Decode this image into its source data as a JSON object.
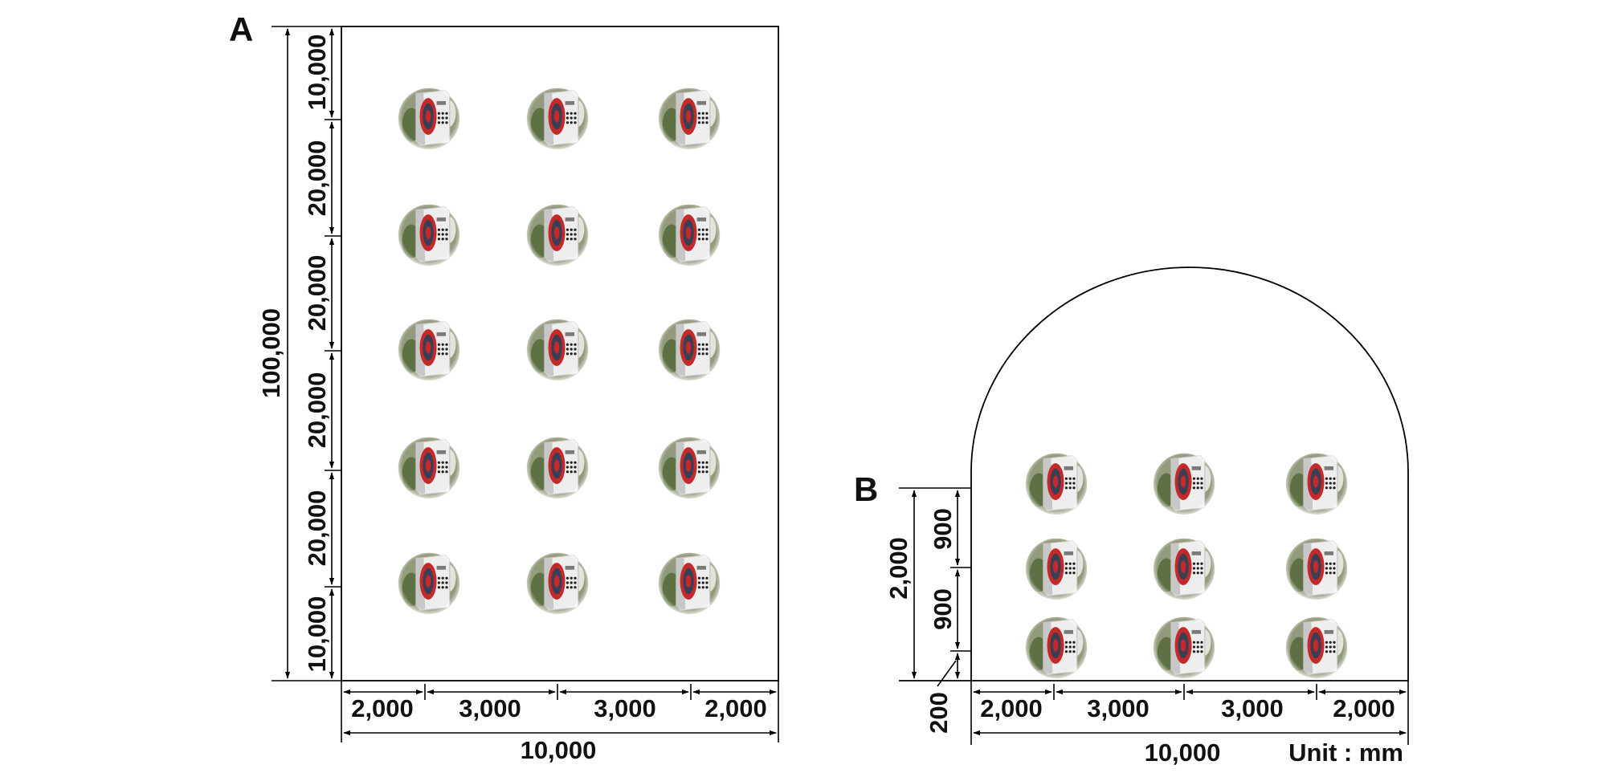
{
  "panel_a": {
    "label": "A",
    "height_total": "100,000",
    "height_segments": [
      "10,000",
      "20,000",
      "20,000",
      "20,000",
      "20,000",
      "10,000"
    ],
    "width_segments": [
      "2,000",
      "3,000",
      "3,000",
      "2,000"
    ],
    "width_total": "10,000",
    "sensor_grid": {
      "rows": 5,
      "cols": 3
    }
  },
  "panel_b": {
    "label": "B",
    "height_total": "2,000",
    "height_segments": [
      "900",
      "900",
      "200"
    ],
    "width_segments": [
      "2,000",
      "3,000",
      "3,000",
      "2,000"
    ],
    "width_total": "10,000",
    "unit": "Unit : mm",
    "sensor_grid": {
      "rows": 3,
      "cols": 3
    }
  },
  "sensor_icon": "speaker-device-icon"
}
